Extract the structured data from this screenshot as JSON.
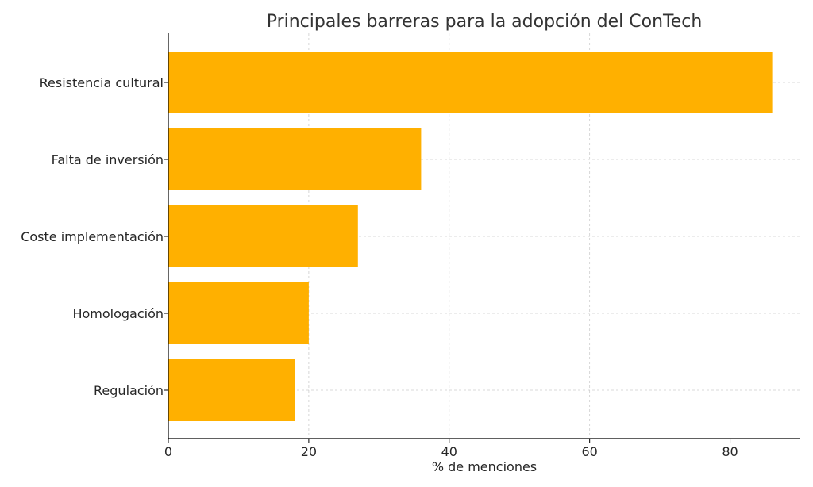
{
  "chart_data": {
    "type": "bar",
    "orientation": "horizontal",
    "title": "Principales barreras para la adopción del ConTech",
    "xlabel": "% de menciones",
    "ylabel": "",
    "categories": [
      "Resistencia cultural",
      "Falta de inversión",
      "Coste implementación",
      "Homologación",
      "Regulación"
    ],
    "values": [
      86,
      36,
      27,
      20,
      18
    ],
    "xlim": [
      0,
      90
    ],
    "xticks": [
      0,
      20,
      40,
      60,
      80
    ],
    "grid": true,
    "bar_color": "#FFB000",
    "grid_color": "#cccccc",
    "axis_color": "#000000"
  }
}
